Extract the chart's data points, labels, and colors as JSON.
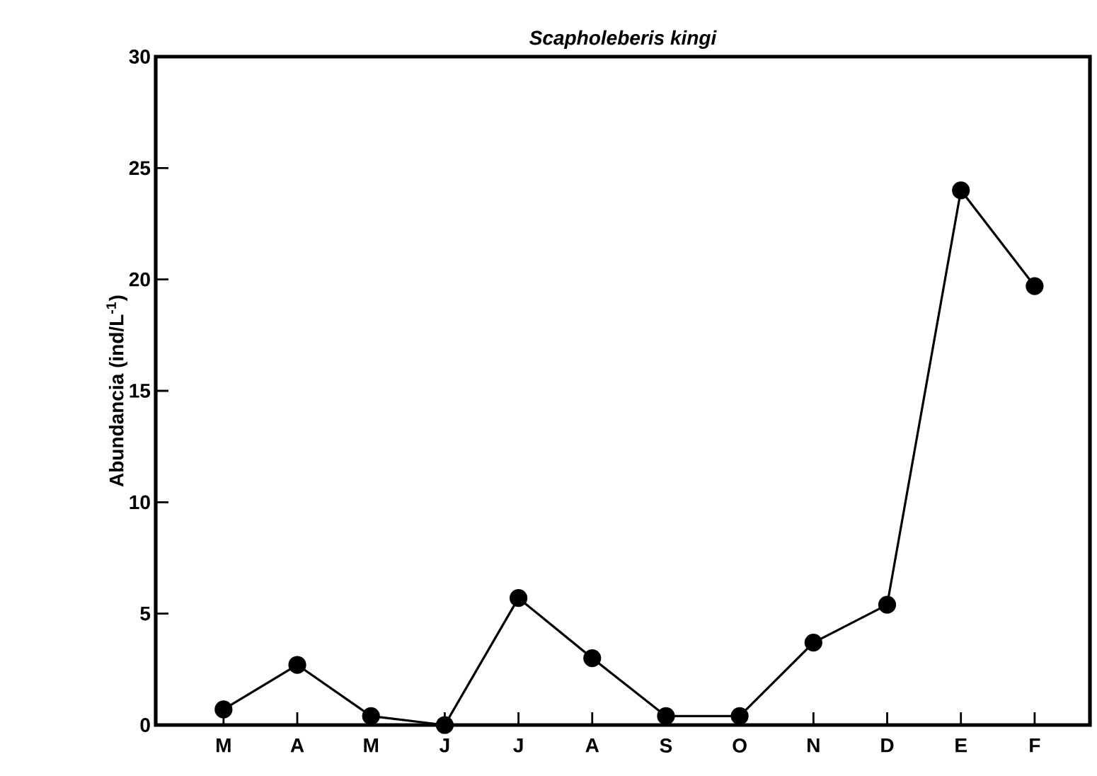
{
  "chart_data": {
    "type": "line",
    "title": "Scapholeberis kingi",
    "ylabel": "Abundancia (ind/L$^{-1}$)",
    "categories": [
      "M",
      "A",
      "M",
      "J",
      "J",
      "A",
      "S",
      "O",
      "N",
      "D",
      "E",
      "F"
    ],
    "series": [
      {
        "color": "#000000",
        "values": [
          0.7,
          2.7,
          0.4,
          0,
          5.7,
          3.0,
          0.4,
          0.4,
          3.7,
          5.4,
          24.0,
          19.7
        ]
      }
    ],
    "ylim": [
      0,
      30
    ],
    "yticks": [
      0,
      5,
      10,
      15,
      20,
      25,
      30
    ],
    "marker": "circle",
    "line_style": "solid"
  }
}
